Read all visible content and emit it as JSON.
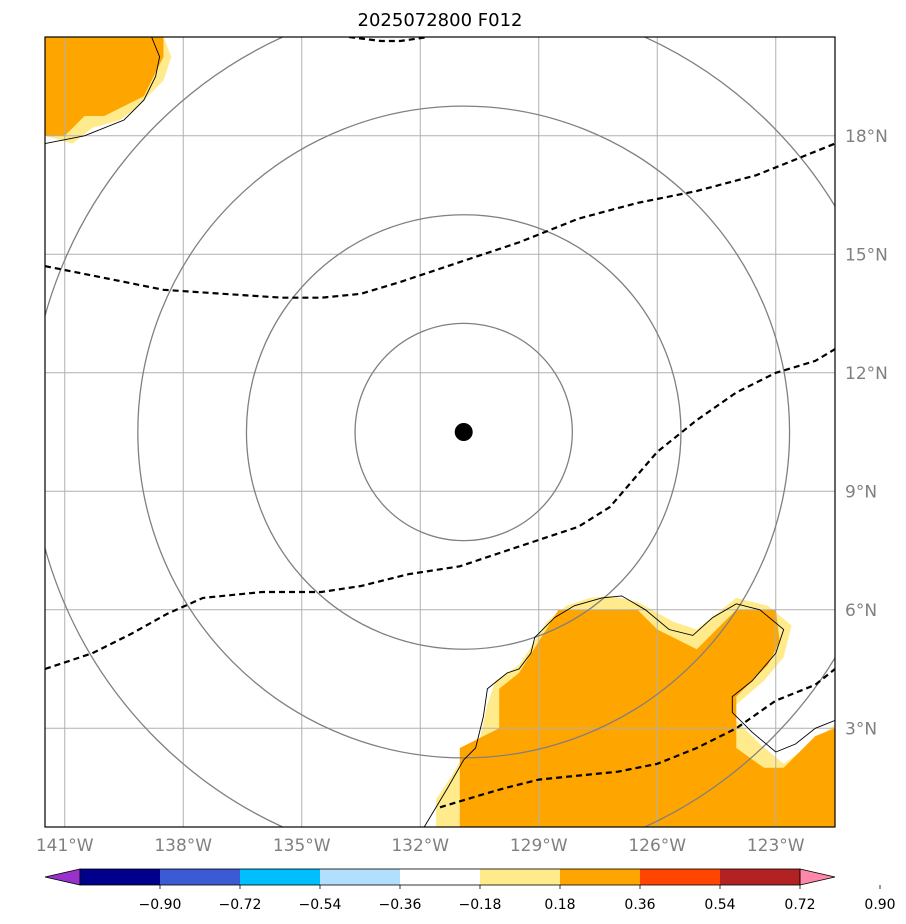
{
  "title": "2025072800 F012",
  "map": {
    "lon_range": [
      -141.5,
      -121.5
    ],
    "lat_range": [
      0.5,
      20.5
    ],
    "lon_ticks": [
      {
        "value": -141,
        "label": "141°W"
      },
      {
        "value": -138,
        "label": "138°W"
      },
      {
        "value": -135,
        "label": "135°W"
      },
      {
        "value": -132,
        "label": "132°W"
      },
      {
        "value": -129,
        "label": "129°W"
      },
      {
        "value": -126,
        "label": "126°W"
      },
      {
        "value": -123,
        "label": "123°W"
      }
    ],
    "lat_ticks": [
      {
        "value": 3,
        "label": "3°N"
      },
      {
        "value": 6,
        "label": "6°N"
      },
      {
        "value": 9,
        "label": "9°N"
      },
      {
        "value": 12,
        "label": "12°N"
      },
      {
        "value": 15,
        "label": "15°N"
      },
      {
        "value": 18,
        "label": "18°N"
      }
    ],
    "center": {
      "lon": -130.9,
      "lat": 10.5
    },
    "range_ring_radii_deg": [
      2.75,
      5.5,
      8.25,
      11.0
    ],
    "grid": true,
    "colors": {
      "fill_orange": "#ffa500",
      "fill_yellow": "#ffeb8c",
      "grid": "#b0b0b0",
      "rings": "#808080",
      "contour": "#000000"
    }
  },
  "contours": [
    [
      [
        -141.5,
        14.7
      ],
      [
        -140,
        14.4
      ],
      [
        -138.5,
        14.1
      ],
      [
        -137,
        14.0
      ],
      [
        -135.5,
        13.9
      ],
      [
        -134.5,
        13.9
      ],
      [
        -133.5,
        14.0
      ],
      [
        -132.5,
        14.3
      ],
      [
        -131,
        14.8
      ],
      [
        -129.5,
        15.3
      ],
      [
        -128,
        15.9
      ],
      [
        -126.5,
        16.3
      ],
      [
        -125,
        16.6
      ],
      [
        -123.5,
        17.0
      ],
      [
        -122.5,
        17.4
      ],
      [
        -121.5,
        17.8
      ]
    ],
    [
      [
        -141.5,
        4.5
      ],
      [
        -140.3,
        4.9
      ],
      [
        -139.3,
        5.4
      ],
      [
        -138.4,
        5.9
      ],
      [
        -137.5,
        6.3
      ],
      [
        -136,
        6.45
      ],
      [
        -134.5,
        6.45
      ],
      [
        -133.5,
        6.6
      ],
      [
        -132.3,
        6.9
      ],
      [
        -131,
        7.1
      ],
      [
        -129.5,
        7.6
      ],
      [
        -128,
        8.1
      ],
      [
        -127.2,
        8.6
      ],
      [
        -126.6,
        9.3
      ],
      [
        -126,
        10.0
      ],
      [
        -125,
        10.8
      ],
      [
        -124,
        11.5
      ],
      [
        -123,
        12.0
      ],
      [
        -122,
        12.3
      ],
      [
        -121.5,
        12.6
      ]
    ],
    [
      [
        -131.5,
        1.0
      ],
      [
        -130.5,
        1.3
      ],
      [
        -129.8,
        1.5
      ],
      [
        -129,
        1.7
      ],
      [
        -128,
        1.8
      ],
      [
        -127,
        1.9
      ],
      [
        -126,
        2.1
      ],
      [
        -125,
        2.5
      ],
      [
        -124,
        3.0
      ],
      [
        -123,
        3.7
      ],
      [
        -122,
        4.1
      ],
      [
        -121.5,
        4.5
      ]
    ],
    [
      [
        -133.8,
        20.5
      ],
      [
        -133,
        20.4
      ],
      [
        -132.5,
        20.4
      ],
      [
        -131.8,
        20.5
      ]
    ]
  ],
  "point": {
    "lon": -130.9,
    "lat": 10.5
  },
  "land_fills": {
    "sw_yellow": [
      [
        -131.6,
        0.5
      ],
      [
        -131.6,
        1.2
      ],
      [
        -131.2,
        1.8
      ],
      [
        -130.8,
        2.5
      ],
      [
        -130.5,
        2.7
      ],
      [
        -130.3,
        3.6
      ],
      [
        -130.1,
        4.2
      ],
      [
        -129.5,
        4.6
      ],
      [
        -129.1,
        5.2
      ],
      [
        -128.8,
        5.7
      ],
      [
        -128.3,
        6.1
      ],
      [
        -127.7,
        6.3
      ],
      [
        -127.2,
        6.35
      ],
      [
        -126.5,
        6.2
      ],
      [
        -125.6,
        5.7
      ],
      [
        -125.0,
        5.5
      ],
      [
        -124.5,
        5.9
      ],
      [
        -124.0,
        6.3
      ],
      [
        -123.2,
        6.1
      ],
      [
        -122.6,
        5.6
      ],
      [
        -122.8,
        4.8
      ],
      [
        -123.3,
        4.2
      ],
      [
        -124.0,
        3.6
      ],
      [
        -124.0,
        3.2
      ],
      [
        -123.4,
        2.6
      ],
      [
        -122.8,
        2.1
      ],
      [
        -122.1,
        2.6
      ],
      [
        -121.5,
        3.1
      ],
      [
        -121.5,
        0.5
      ]
    ],
    "sw_orange": [
      [
        -131.0,
        0.5
      ],
      [
        -131.0,
        2.5
      ],
      [
        -130.0,
        3.0
      ],
      [
        -130.0,
        4.0
      ],
      [
        -129.5,
        4.4
      ],
      [
        -129.0,
        5.2
      ],
      [
        -128.5,
        6.0
      ],
      [
        -126.5,
        6.0
      ],
      [
        -126.0,
        5.5
      ],
      [
        -125.0,
        5.0
      ],
      [
        -124.5,
        5.5
      ],
      [
        -124.0,
        6.0
      ],
      [
        -123.0,
        6.0
      ],
      [
        -122.9,
        5.2
      ],
      [
        -123.2,
        4.6
      ],
      [
        -124.0,
        3.8
      ],
      [
        -124.0,
        2.5
      ],
      [
        -123.3,
        2.0
      ],
      [
        -122.8,
        2.0
      ],
      [
        -122.0,
        2.8
      ],
      [
        -121.5,
        3.0
      ],
      [
        -121.5,
        0.5
      ]
    ],
    "nw_yellow": [
      [
        -141.5,
        20.5
      ],
      [
        -141.5,
        18.0
      ],
      [
        -140.8,
        17.8
      ],
      [
        -140.3,
        18.2
      ],
      [
        -139.6,
        18.4
      ],
      [
        -139.2,
        18.7
      ],
      [
        -138.5,
        19.4
      ],
      [
        -138.3,
        20.0
      ],
      [
        -138.5,
        20.5
      ]
    ],
    "nw_orange": [
      [
        -141.5,
        20.5
      ],
      [
        -141.5,
        18.0
      ],
      [
        -141.0,
        18.0
      ],
      [
        -140.5,
        18.5
      ],
      [
        -140.0,
        18.5
      ],
      [
        -139.0,
        19.0
      ],
      [
        -138.5,
        20.0
      ],
      [
        -138.5,
        20.5
      ]
    ]
  },
  "coastlines": [
    [
      [
        -131.9,
        0.5
      ],
      [
        -131.3,
        1.5
      ],
      [
        -130.9,
        2.2
      ],
      [
        -130.6,
        2.5
      ],
      [
        -130.4,
        3.3
      ],
      [
        -130.3,
        4.0
      ],
      [
        -129.8,
        4.4
      ],
      [
        -129.5,
        4.5
      ],
      [
        -129.2,
        4.9
      ],
      [
        -129.1,
        5.3
      ],
      [
        -128.6,
        5.8
      ],
      [
        -128.1,
        6.1
      ],
      [
        -127.4,
        6.3
      ],
      [
        -126.9,
        6.35
      ],
      [
        -126.3,
        6.0
      ],
      [
        -125.7,
        5.5
      ],
      [
        -125.1,
        5.35
      ],
      [
        -124.6,
        5.8
      ],
      [
        -124.0,
        6.15
      ],
      [
        -123.4,
        6.0
      ],
      [
        -122.8,
        5.5
      ],
      [
        -123.0,
        4.9
      ],
      [
        -123.6,
        4.2
      ],
      [
        -124.1,
        3.8
      ],
      [
        -124.1,
        3.4
      ],
      [
        -123.6,
        2.9
      ],
      [
        -123.0,
        2.4
      ],
      [
        -122.5,
        2.6
      ],
      [
        -122.0,
        3.0
      ],
      [
        -121.5,
        3.2
      ]
    ],
    [
      [
        -141.5,
        17.8
      ],
      [
        -140.5,
        18.0
      ],
      [
        -139.5,
        18.4
      ],
      [
        -139.0,
        18.9
      ],
      [
        -138.7,
        19.5
      ],
      [
        -138.6,
        20.0
      ],
      [
        -138.8,
        20.5
      ]
    ]
  ],
  "colorbar": {
    "colors": [
      "#9932cc",
      "#00008b",
      "#3b5bd6",
      "#00bfff",
      "#b0e0fe",
      "#ffffff",
      "#ffeb8c",
      "#ffa500",
      "#ff4500",
      "#b22222",
      "#ff88aa"
    ],
    "labels": [
      "−0.90",
      "−0.72",
      "−0.54",
      "−0.36",
      "−0.18",
      "0.18",
      "0.36",
      "0.54",
      "0.72",
      "0.90"
    ]
  }
}
